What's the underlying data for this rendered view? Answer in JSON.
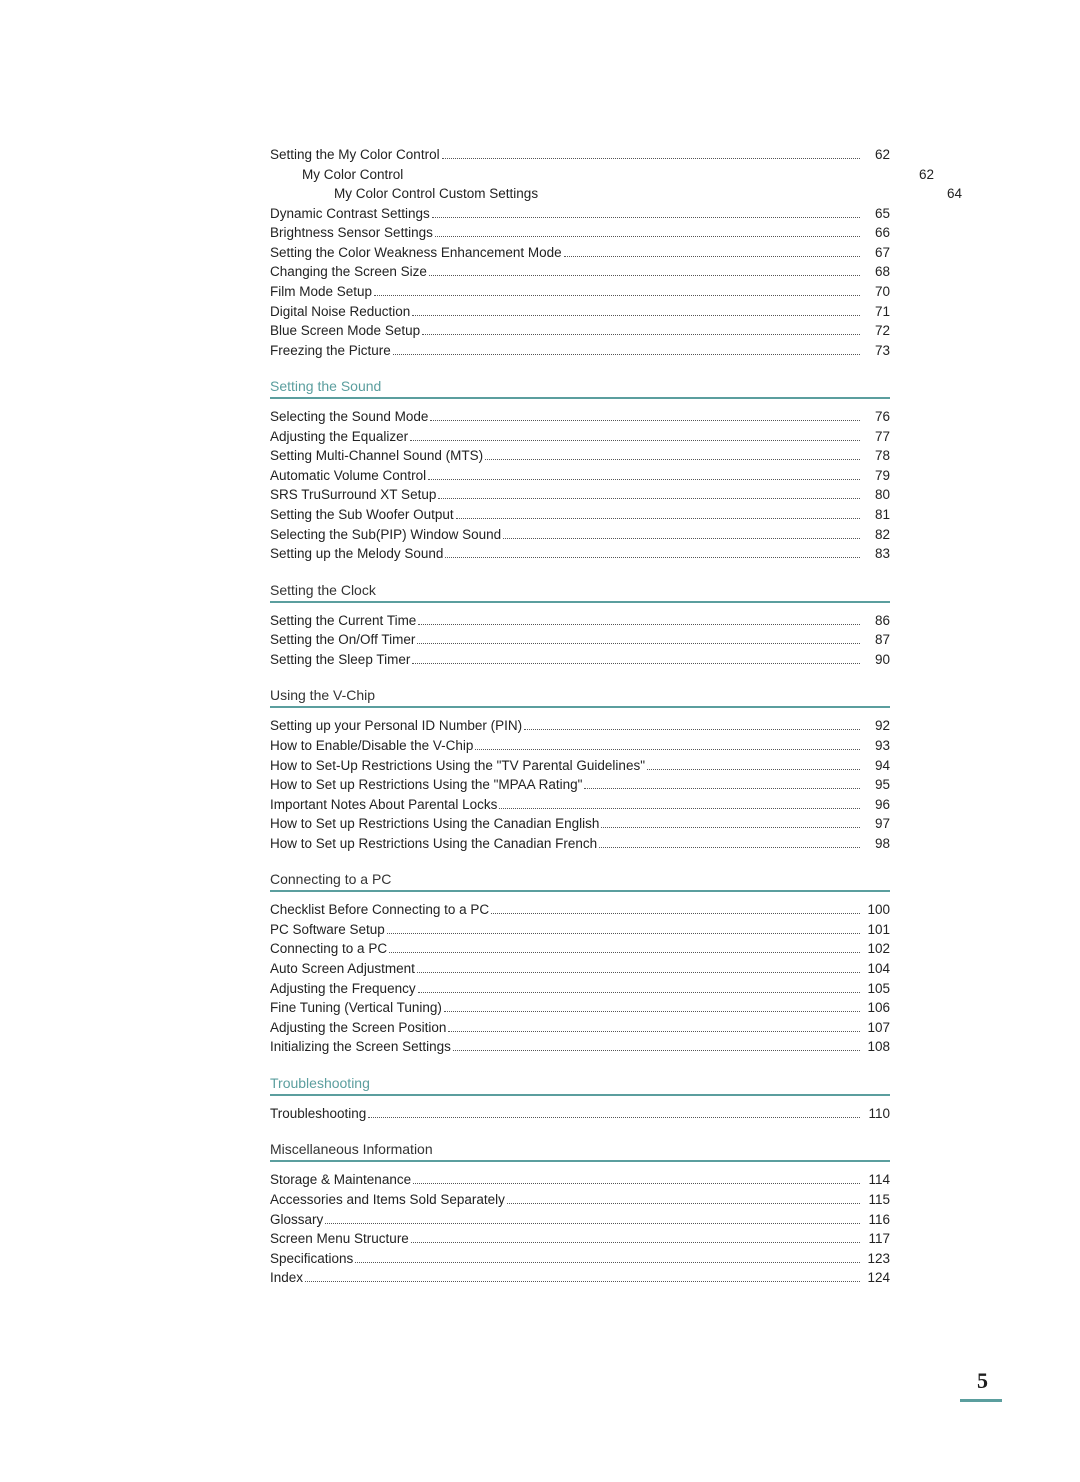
{
  "colors": {
    "accent": "#5b9e9e",
    "text": "#222222",
    "background": "#ffffff",
    "dots": "#555555"
  },
  "page_number": "5",
  "intro_lines": [
    {
      "title": "Setting the My Color Control",
      "page": "62"
    }
  ],
  "intro_subs": [
    {
      "title": "My Color Control",
      "page": "62",
      "indent": 1
    },
    {
      "title": "My Color Control Custom Settings",
      "page": "64",
      "indent": 2
    }
  ],
  "intro_lines2": [
    {
      "title": "Dynamic Contrast Settings",
      "page": "65"
    },
    {
      "title": "Brightness Sensor Settings",
      "page": "66"
    },
    {
      "title": "Setting the Color Weakness Enhancement Mode",
      "page": "67"
    },
    {
      "title": "Changing the Screen Size",
      "page": "68"
    },
    {
      "title": "Film Mode Setup",
      "page": "70"
    },
    {
      "title": "Digital Noise Reduction",
      "page": "71"
    },
    {
      "title": "Blue Screen Mode Setup",
      "page": "72"
    },
    {
      "title": "Freezing the Picture",
      "page": "73"
    }
  ],
  "sections": [
    {
      "heading": "Setting the Sound",
      "heading_color": "teal",
      "items": [
        {
          "title": "Selecting the Sound Mode",
          "page": "76"
        },
        {
          "title": "Adjusting the Equalizer",
          "page": "77"
        },
        {
          "title": "Setting Multi-Channel Sound (MTS)",
          "page": "78"
        },
        {
          "title": "Automatic Volume Control",
          "page": "79"
        },
        {
          "title": "SRS TruSurround XT Setup",
          "page": "80"
        },
        {
          "title": "Setting the Sub Woofer Output",
          "page": "81"
        },
        {
          "title": "Selecting the Sub(PIP) Window Sound",
          "page": "82"
        },
        {
          "title": "Setting up the Melody Sound",
          "page": "83"
        }
      ]
    },
    {
      "heading": "Setting the Clock",
      "heading_color": "dark",
      "items": [
        {
          "title": "Setting the Current Time",
          "page": "86"
        },
        {
          "title": "Setting the On/Off Timer",
          "page": "87"
        },
        {
          "title": "Setting the Sleep Timer",
          "page": "90"
        }
      ]
    },
    {
      "heading": "Using the V-Chip",
      "heading_color": "dark",
      "items": [
        {
          "title": "Setting up your Personal ID Number (PIN)",
          "page": "92"
        },
        {
          "title": "How to Enable/Disable the V-Chip",
          "page": "93"
        },
        {
          "title": "How to Set-Up Restrictions Using the \"TV Parental Guidelines\"",
          "page": "94"
        },
        {
          "title": "How to Set up Restrictions Using the \"MPAA Rating\"",
          "page": "95"
        },
        {
          "title": "Important Notes About Parental Locks",
          "page": "96"
        },
        {
          "title": "How to Set up Restrictions Using the Canadian English",
          "page": "97"
        },
        {
          "title": "How to Set up Restrictions Using the Canadian French",
          "page": "98"
        }
      ]
    },
    {
      "heading": "Connecting to a PC",
      "heading_color": "dark",
      "items": [
        {
          "title": "Checklist Before Connecting to a PC",
          "page": "100"
        },
        {
          "title": "PC Software Setup",
          "page": "101"
        },
        {
          "title": "Connecting to a PC",
          "page": "102"
        },
        {
          "title": "Auto Screen Adjustment",
          "page": "104"
        },
        {
          "title": "Adjusting the Frequency",
          "page": "105"
        },
        {
          "title": "Fine Tuning (Vertical Tuning)",
          "page": "106"
        },
        {
          "title": "Adjusting the Screen Position",
          "page": "107"
        },
        {
          "title": "Initializing the Screen Settings",
          "page": "108"
        }
      ]
    },
    {
      "heading": "Troubleshooting",
      "heading_color": "teal",
      "items": [
        {
          "title": "Troubleshooting",
          "page": "110"
        }
      ]
    },
    {
      "heading": "Miscellaneous Information",
      "heading_color": "dark",
      "items": [
        {
          "title": "Storage & Maintenance",
          "page": "114"
        },
        {
          "title": "Accessories and Items Sold Separately",
          "page": "115"
        },
        {
          "title": "Glossary",
          "page": "116"
        },
        {
          "title": "Screen Menu Structure",
          "page": "117"
        },
        {
          "title": "Specifications",
          "page": "123"
        },
        {
          "title": "Index",
          "page": "124"
        }
      ]
    }
  ]
}
